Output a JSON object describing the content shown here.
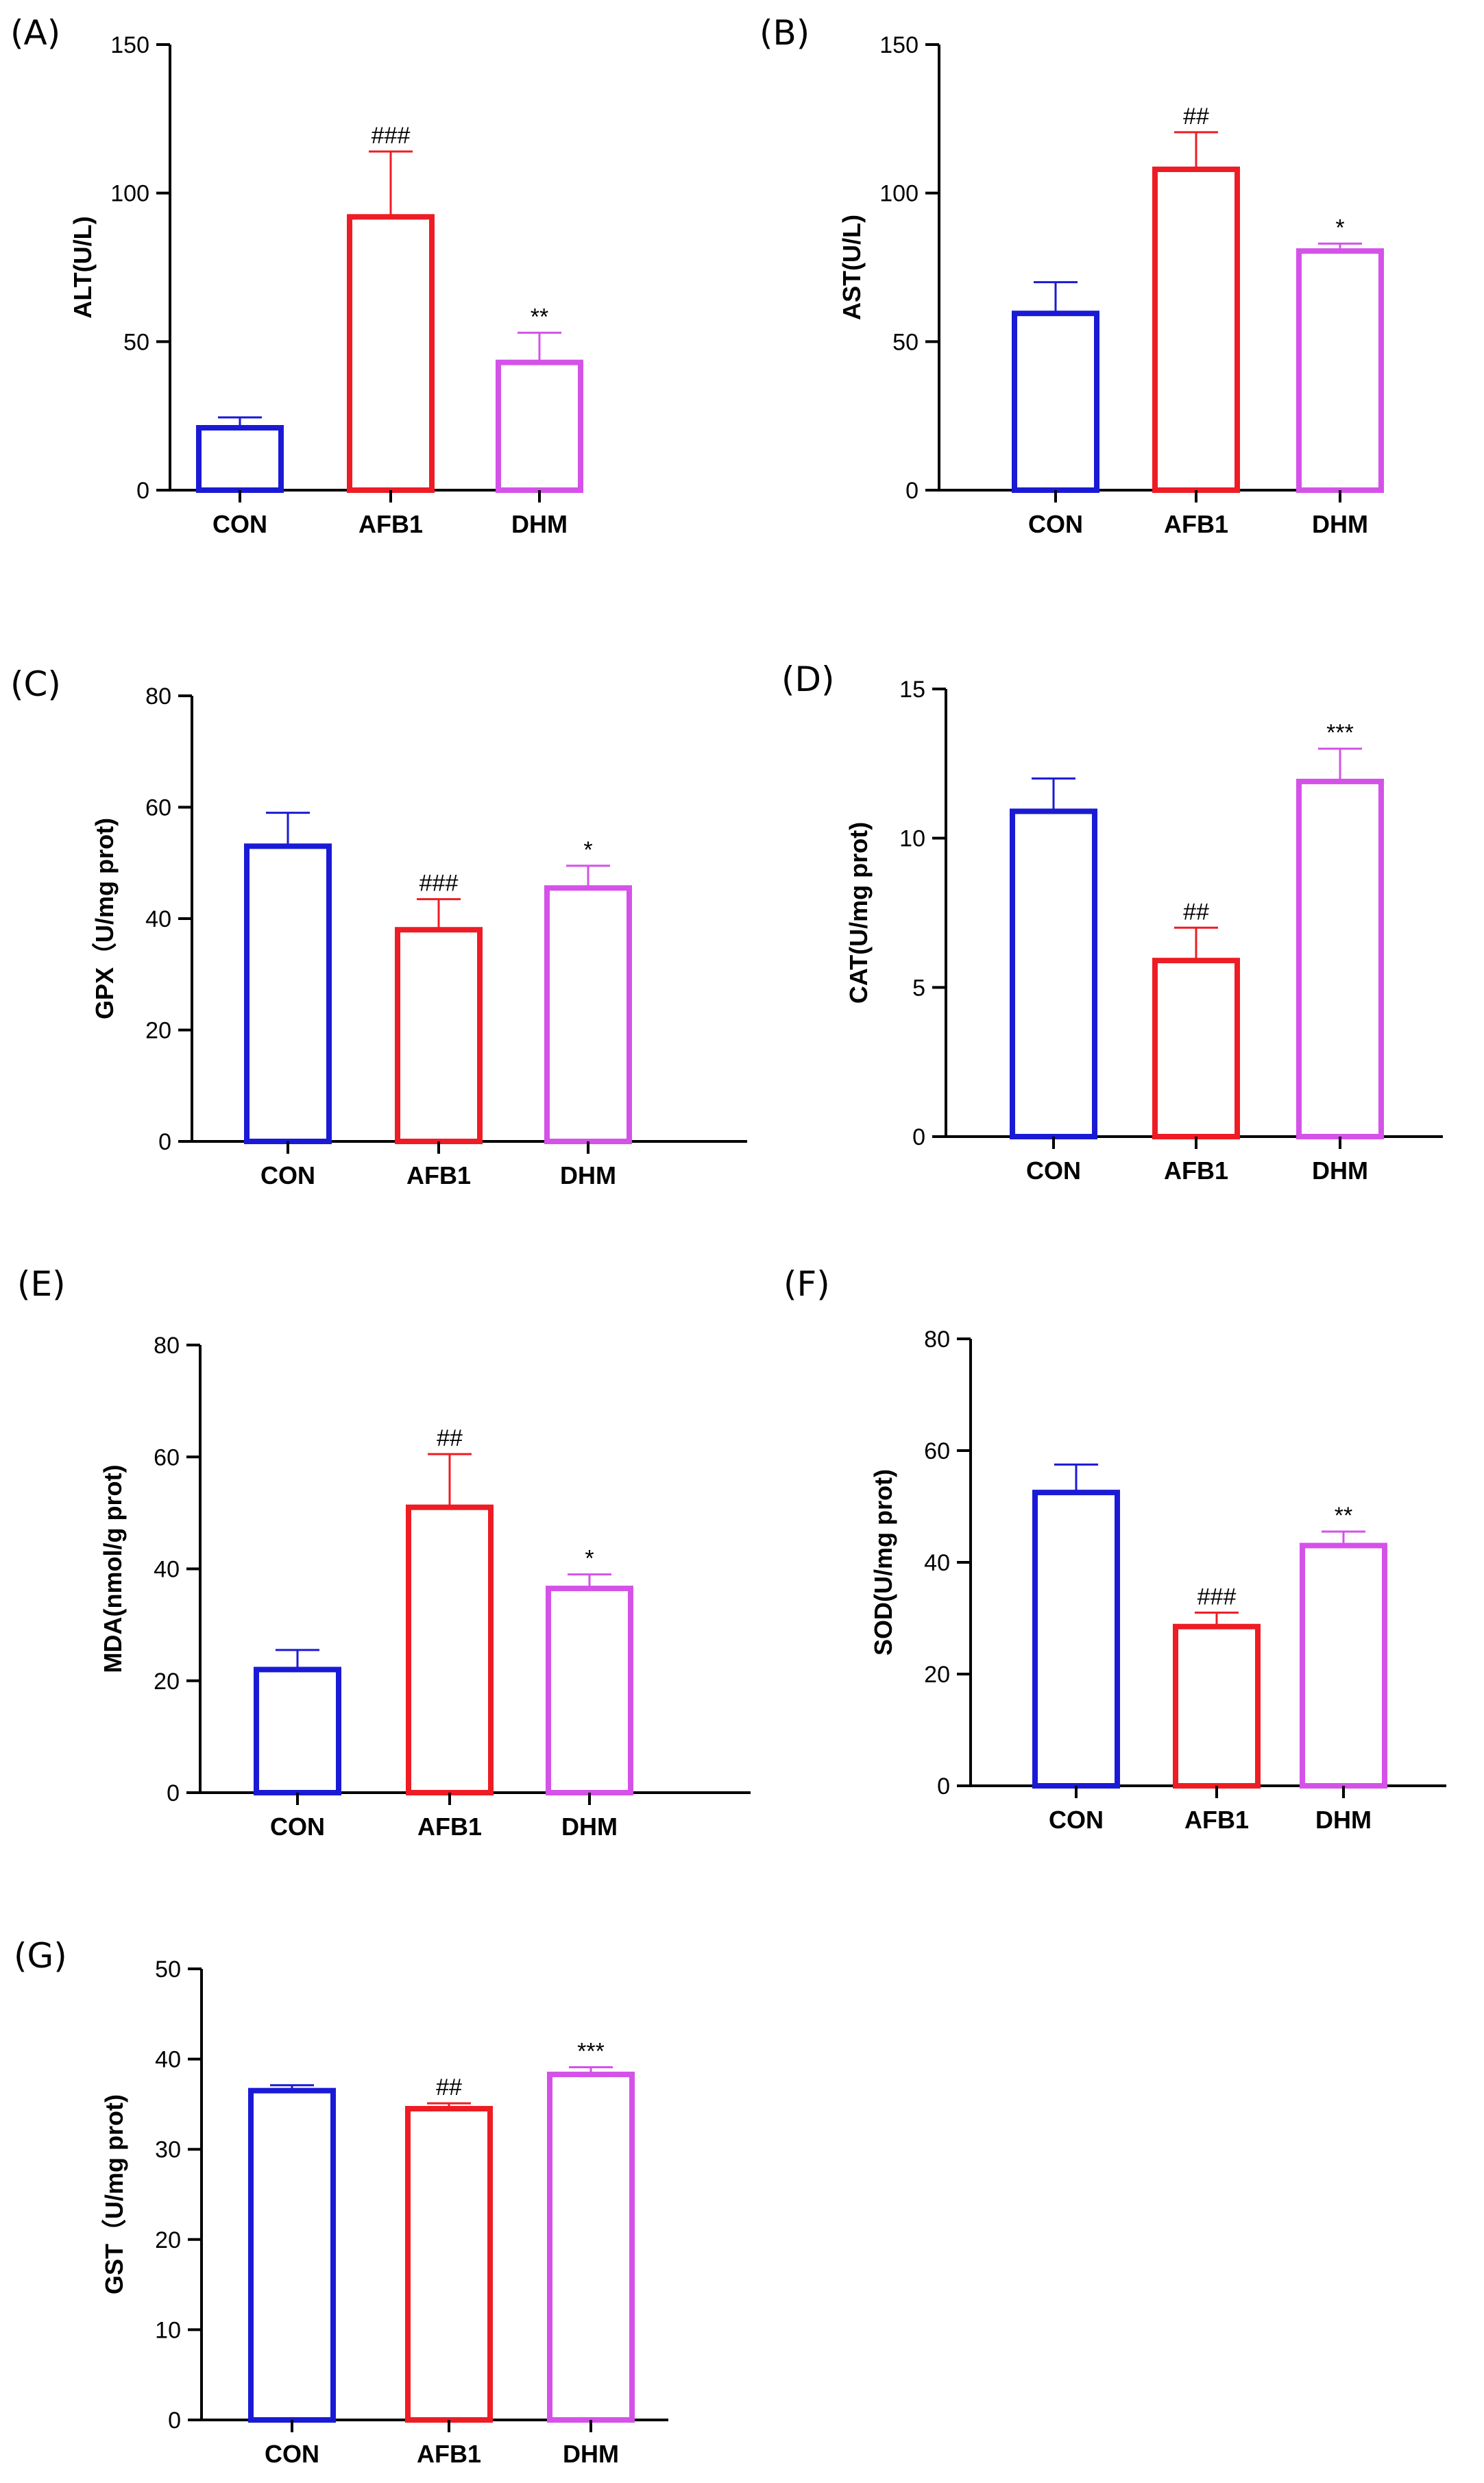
{
  "figure": {
    "colors": {
      "CON": "#1a1ad6",
      "AFB1": "#ee1c24",
      "DHM": "#d452e8",
      "axis": "#000000"
    }
  },
  "chart_data": [
    {
      "panel": "(A)",
      "type": "bar",
      "ylabel": "ALT(U/L)",
      "categories": [
        "CON",
        "AFB1",
        "DHM"
      ],
      "values": [
        21,
        92,
        43
      ],
      "errors": [
        3.5,
        22,
        10
      ],
      "significance": [
        "",
        "###",
        "**"
      ],
      "ylim": [
        0,
        150
      ],
      "yticks": [
        0,
        50,
        100,
        150
      ]
    },
    {
      "panel": "(B)",
      "type": "bar",
      "ylabel": "AST(U/L)",
      "categories": [
        "CON",
        "AFB1",
        "DHM"
      ],
      "values": [
        59.5,
        108,
        80.5
      ],
      "errors": [
        10.5,
        12.5,
        2.5
      ],
      "significance": [
        "",
        "##",
        "*"
      ],
      "ylim": [
        0,
        150
      ],
      "yticks": [
        0,
        50,
        100,
        150
      ]
    },
    {
      "panel": "(C)",
      "type": "bar",
      "ylabel": "GPX（U/mg prot)",
      "categories": [
        "CON",
        "AFB1",
        "DHM"
      ],
      "values": [
        53,
        38,
        45.5
      ],
      "errors": [
        6,
        5.5,
        4
      ],
      "significance": [
        "",
        "###",
        "*"
      ],
      "ylim": [
        0,
        80
      ],
      "yticks": [
        0,
        20,
        40,
        60,
        80
      ]
    },
    {
      "panel": "(D)",
      "type": "bar",
      "ylabel": "CAT(U/mg prot)",
      "categories": [
        "CON",
        "AFB1",
        "DHM"
      ],
      "values": [
        10.9,
        5.9,
        11.9
      ],
      "errors": [
        1.1,
        1.1,
        1.1
      ],
      "significance": [
        "",
        "##",
        "***"
      ],
      "ylim": [
        0,
        15
      ],
      "yticks": [
        0,
        5,
        10,
        15
      ]
    },
    {
      "panel": "(E)",
      "type": "bar",
      "ylabel": "MDA(nmol/g prot)",
      "categories": [
        "CON",
        "AFB1",
        "DHM"
      ],
      "values": [
        22,
        51,
        36.5
      ],
      "errors": [
        3.5,
        9.5,
        2.5
      ],
      "significance": [
        "",
        "##",
        "*"
      ],
      "ylim": [
        0,
        80
      ],
      "yticks": [
        0,
        20,
        40,
        60,
        80
      ]
    },
    {
      "panel": "(F)",
      "type": "bar",
      "ylabel": "SOD(U/mg prot)",
      "categories": [
        "CON",
        "AFB1",
        "DHM"
      ],
      "values": [
        52.5,
        28.5,
        43
      ],
      "errors": [
        5,
        2.5,
        2.5
      ],
      "significance": [
        "",
        "###",
        "**"
      ],
      "ylim": [
        0,
        80
      ],
      "yticks": [
        0,
        20,
        40,
        60,
        80
      ]
    },
    {
      "panel": "(G)",
      "type": "bar",
      "ylabel": "GST（U/mg prot)",
      "categories": [
        "CON",
        "AFB1",
        "DHM"
      ],
      "values": [
        36.5,
        34.5,
        38.3
      ],
      "errors": [
        0.6,
        0.6,
        0.8
      ],
      "significance": [
        "",
        "##",
        "***"
      ],
      "ylim": [
        0,
        50
      ],
      "yticks": [
        0,
        10,
        20,
        30,
        40,
        50
      ]
    }
  ]
}
